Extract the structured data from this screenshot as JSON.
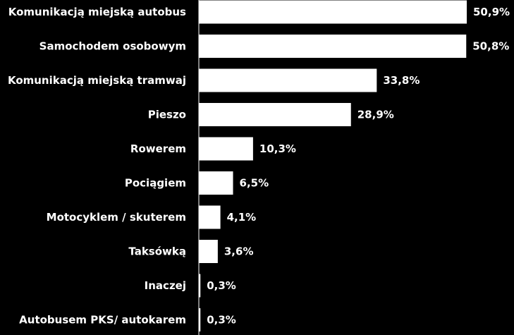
{
  "chart_data": {
    "type": "bar",
    "orientation": "horizontal",
    "title": "",
    "xlabel": "",
    "ylabel": "",
    "xlim": [
      0,
      52
    ],
    "grid": false,
    "legend": "none",
    "colors": {
      "background": "#000000",
      "bar": "#ffffff",
      "text": "#ffffff"
    },
    "categories": [
      "Komunikacją miejską autobus",
      "Samochodem osobowym",
      "Komunikacją miejską tramwaj",
      "Pieszo",
      "Rowerem",
      "Pociągiem",
      "Motocyklem / skuterem",
      "Taksówką",
      "Inaczej",
      "Autobusem PKS/ autokarem"
    ],
    "values": [
      50.9,
      50.8,
      33.8,
      28.9,
      10.3,
      6.5,
      4.1,
      3.6,
      0.3,
      0.3
    ],
    "value_labels": [
      "50,9%",
      "50,8%",
      "33,8%",
      "28,9%",
      "10,3%",
      "6,5%",
      "4,1%",
      "3,6%",
      "0,3%",
      "0,3%"
    ]
  }
}
